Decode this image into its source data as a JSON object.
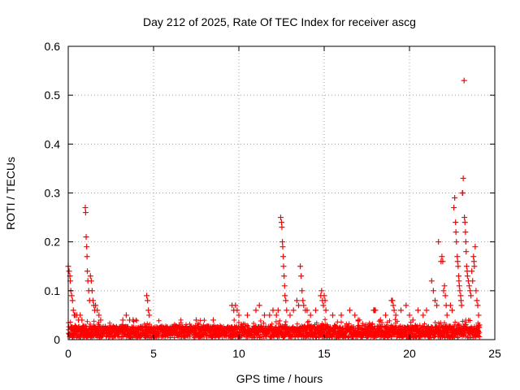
{
  "chart_data": {
    "type": "scatter",
    "title": "Day 212 of 2025, Rate Of TEC Index for receiver ascg",
    "xlabel": "GPS time / hours",
    "ylabel": "ROTI / TECUs",
    "xlim": [
      0,
      25
    ],
    "ylim": [
      0,
      0.6
    ],
    "xticks": [
      0,
      5,
      10,
      15,
      20,
      25
    ],
    "yticks": [
      0,
      0.1,
      0.2,
      0.3,
      0.4,
      0.5,
      0.6
    ],
    "xtick_labels": [
      "0",
      "5",
      "10",
      "15",
      "20",
      "25"
    ],
    "ytick_labels": [
      "0",
      "0.1",
      "0.2",
      "0.3",
      "0.4",
      "0.5",
      "0.6"
    ],
    "grid": true,
    "marker": "+",
    "marker_color": "#ff0000",
    "series": [
      {
        "name": "ROTI",
        "points": [
          [
            0.0,
            0.15
          ],
          [
            0.05,
            0.14
          ],
          [
            0.1,
            0.13
          ],
          [
            0.12,
            0.12
          ],
          [
            0.15,
            0.1
          ],
          [
            0.2,
            0.09
          ],
          [
            0.25,
            0.08
          ],
          [
            0.3,
            0.06
          ],
          [
            0.35,
            0.05
          ],
          [
            0.4,
            0.05
          ],
          [
            0.5,
            0.05
          ],
          [
            0.6,
            0.04
          ],
          [
            0.7,
            0.05
          ],
          [
            0.8,
            0.04
          ],
          [
            1.0,
            0.27
          ],
          [
            1.02,
            0.26
          ],
          [
            1.05,
            0.21
          ],
          [
            1.08,
            0.19
          ],
          [
            1.1,
            0.17
          ],
          [
            1.12,
            0.14
          ],
          [
            1.15,
            0.12
          ],
          [
            1.2,
            0.1
          ],
          [
            1.25,
            0.08
          ],
          [
            1.3,
            0.13
          ],
          [
            1.35,
            0.12
          ],
          [
            1.4,
            0.1
          ],
          [
            1.45,
            0.08
          ],
          [
            1.5,
            0.07
          ],
          [
            1.55,
            0.06
          ],
          [
            1.6,
            0.07
          ],
          [
            1.7,
            0.06
          ],
          [
            1.8,
            0.05
          ],
          [
            1.9,
            0.04
          ],
          [
            3.2,
            0.04
          ],
          [
            3.4,
            0.05
          ],
          [
            3.6,
            0.04
          ],
          [
            3.8,
            0.04
          ],
          [
            4.6,
            0.09
          ],
          [
            4.65,
            0.08
          ],
          [
            4.7,
            0.06
          ],
          [
            4.75,
            0.05
          ],
          [
            6.5,
            0.03
          ],
          [
            7.5,
            0.04
          ],
          [
            8.5,
            0.04
          ],
          [
            9.6,
            0.07
          ],
          [
            9.7,
            0.06
          ],
          [
            9.8,
            0.07
          ],
          [
            9.9,
            0.06
          ],
          [
            10.0,
            0.05
          ],
          [
            10.5,
            0.05
          ],
          [
            11.0,
            0.06
          ],
          [
            11.2,
            0.07
          ],
          [
            11.5,
            0.05
          ],
          [
            11.8,
            0.05
          ],
          [
            12.0,
            0.06
          ],
          [
            12.2,
            0.05
          ],
          [
            12.3,
            0.06
          ],
          [
            12.45,
            0.25
          ],
          [
            12.5,
            0.24
          ],
          [
            12.52,
            0.23
          ],
          [
            12.55,
            0.2
          ],
          [
            12.57,
            0.19
          ],
          [
            12.6,
            0.17
          ],
          [
            12.62,
            0.15
          ],
          [
            12.65,
            0.13
          ],
          [
            12.68,
            0.11
          ],
          [
            12.7,
            0.09
          ],
          [
            12.75,
            0.08
          ],
          [
            12.8,
            0.06
          ],
          [
            13.0,
            0.05
          ],
          [
            13.2,
            0.06
          ],
          [
            13.4,
            0.08
          ],
          [
            13.5,
            0.07
          ],
          [
            13.6,
            0.15
          ],
          [
            13.65,
            0.13
          ],
          [
            13.7,
            0.1
          ],
          [
            13.75,
            0.08
          ],
          [
            13.8,
            0.07
          ],
          [
            13.9,
            0.06
          ],
          [
            14.0,
            0.06
          ],
          [
            14.2,
            0.05
          ],
          [
            14.5,
            0.06
          ],
          [
            14.8,
            0.09
          ],
          [
            14.85,
            0.1
          ],
          [
            14.9,
            0.08
          ],
          [
            14.95,
            0.07
          ],
          [
            15.0,
            0.09
          ],
          [
            15.05,
            0.08
          ],
          [
            15.1,
            0.06
          ],
          [
            15.5,
            0.05
          ],
          [
            16.0,
            0.05
          ],
          [
            16.5,
            0.06
          ],
          [
            16.8,
            0.05
          ],
          [
            17.0,
            0.04
          ],
          [
            17.9,
            0.06
          ],
          [
            17.95,
            0.06
          ],
          [
            18.0,
            0.06
          ],
          [
            18.3,
            0.04
          ],
          [
            18.6,
            0.05
          ],
          [
            18.95,
            0.08
          ],
          [
            19.0,
            0.08
          ],
          [
            19.05,
            0.07
          ],
          [
            19.1,
            0.06
          ],
          [
            19.2,
            0.05
          ],
          [
            19.5,
            0.06
          ],
          [
            19.8,
            0.07
          ],
          [
            20.0,
            0.05
          ],
          [
            20.2,
            0.04
          ],
          [
            20.5,
            0.06
          ],
          [
            20.8,
            0.05
          ],
          [
            21.0,
            0.06
          ],
          [
            21.3,
            0.12
          ],
          [
            21.4,
            0.1
          ],
          [
            21.5,
            0.08
          ],
          [
            21.6,
            0.07
          ],
          [
            21.7,
            0.2
          ],
          [
            21.85,
            0.16
          ],
          [
            21.9,
            0.17
          ],
          [
            21.95,
            0.16
          ],
          [
            22.0,
            0.1
          ],
          [
            22.05,
            0.11
          ],
          [
            22.1,
            0.09
          ],
          [
            22.15,
            0.07
          ],
          [
            22.2,
            0.05
          ],
          [
            22.4,
            0.07
          ],
          [
            22.5,
            0.06
          ],
          [
            22.6,
            0.27
          ],
          [
            22.65,
            0.29
          ],
          [
            22.7,
            0.24
          ],
          [
            22.72,
            0.22
          ],
          [
            22.75,
            0.2
          ],
          [
            22.8,
            0.17
          ],
          [
            22.82,
            0.16
          ],
          [
            22.85,
            0.15
          ],
          [
            22.88,
            0.13
          ],
          [
            22.9,
            0.12
          ],
          [
            22.92,
            0.11
          ],
          [
            22.95,
            0.1
          ],
          [
            23.0,
            0.09
          ],
          [
            23.02,
            0.08
          ],
          [
            23.05,
            0.07
          ],
          [
            23.1,
            0.3
          ],
          [
            23.12,
            0.3
          ],
          [
            23.15,
            0.33
          ],
          [
            23.2,
            0.53
          ],
          [
            23.22,
            0.25
          ],
          [
            23.25,
            0.24
          ],
          [
            23.28,
            0.22
          ],
          [
            23.3,
            0.2
          ],
          [
            23.32,
            0.18
          ],
          [
            23.35,
            0.15
          ],
          [
            23.38,
            0.14
          ],
          [
            23.4,
            0.13
          ],
          [
            23.45,
            0.12
          ],
          [
            23.5,
            0.11
          ],
          [
            23.55,
            0.1
          ],
          [
            23.6,
            0.09
          ],
          [
            23.65,
            0.14
          ],
          [
            23.7,
            0.12
          ],
          [
            23.75,
            0.17
          ],
          [
            23.78,
            0.16
          ],
          [
            23.8,
            0.15
          ],
          [
            23.85,
            0.19
          ],
          [
            23.9,
            0.1
          ],
          [
            23.95,
            0.08
          ],
          [
            24.0,
            0.07
          ],
          [
            24.05,
            0.05
          ],
          [
            24.1,
            0.03
          ]
        ]
      }
    ]
  }
}
